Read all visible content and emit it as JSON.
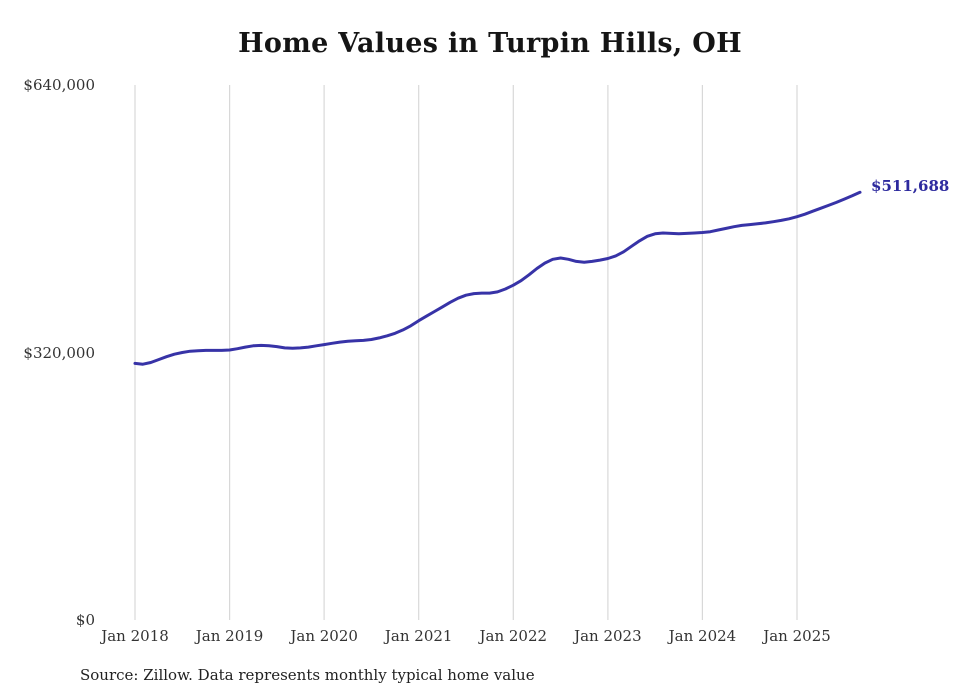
{
  "source_note": "Source: Zillow. Data represents monthly typical home value",
  "chart_data": {
    "type": "line",
    "title": "Home Values in Turpin Hills, OH",
    "xlabel": "",
    "ylabel": "",
    "ylim": [
      0,
      640000
    ],
    "grid": "vertical-only",
    "legend": "none",
    "line_color": "#3733a7",
    "end_label_color": "#2d2a9e",
    "grid_color": "#d8d8d8",
    "end_value_label": "$511,688",
    "y_ticks": [
      {
        "value": 0,
        "label": "$0"
      },
      {
        "value": 320000,
        "label": "$320,000"
      },
      {
        "value": 640000,
        "label": "$640,000"
      }
    ],
    "x_tick_labels": [
      "Jan 2018",
      "Jan 2019",
      "Jan 2020",
      "Jan 2021",
      "Jan 2022",
      "Jan 2023",
      "Jan 2024",
      "Jan 2025"
    ],
    "series": [
      {
        "name": "Typical home value",
        "months": [
          "2018-01",
          "2018-02",
          "2018-03",
          "2018-04",
          "2018-05",
          "2018-06",
          "2018-07",
          "2018-08",
          "2018-09",
          "2018-10",
          "2018-11",
          "2018-12",
          "2019-01",
          "2019-02",
          "2019-03",
          "2019-04",
          "2019-05",
          "2019-06",
          "2019-07",
          "2019-08",
          "2019-09",
          "2019-10",
          "2019-11",
          "2019-12",
          "2020-01",
          "2020-02",
          "2020-03",
          "2020-04",
          "2020-05",
          "2020-06",
          "2020-07",
          "2020-08",
          "2020-09",
          "2020-10",
          "2020-11",
          "2020-12",
          "2021-01",
          "2021-02",
          "2021-03",
          "2021-04",
          "2021-05",
          "2021-06",
          "2021-07",
          "2021-08",
          "2021-09",
          "2021-10",
          "2021-11",
          "2021-12",
          "2022-01",
          "2022-02",
          "2022-03",
          "2022-04",
          "2022-05",
          "2022-06",
          "2022-07",
          "2022-08",
          "2022-09",
          "2022-10",
          "2022-11",
          "2022-12",
          "2023-01",
          "2023-02",
          "2023-03",
          "2023-04",
          "2023-05",
          "2023-06",
          "2023-07",
          "2023-08",
          "2023-09",
          "2023-10",
          "2023-11",
          "2023-12",
          "2024-01",
          "2024-02",
          "2024-03",
          "2024-04",
          "2024-05",
          "2024-06",
          "2024-07",
          "2024-08",
          "2024-09",
          "2024-10",
          "2024-11",
          "2024-12",
          "2025-01",
          "2025-02",
          "2025-03",
          "2025-04",
          "2025-05",
          "2025-06",
          "2025-07",
          "2025-08",
          "2025-09"
        ],
        "values": [
          307000,
          306000,
          308000,
          311500,
          315000,
          318000,
          320000,
          321500,
          322000,
          322500,
          322500,
          322500,
          323000,
          324500,
          326500,
          328000,
          328500,
          328000,
          327000,
          325500,
          325000,
          325500,
          326500,
          328000,
          329500,
          331000,
          332500,
          333500,
          334000,
          334500,
          335500,
          337500,
          340000,
          343000,
          347000,
          352000,
          358000,
          363500,
          369000,
          374500,
          380000,
          385000,
          388500,
          390500,
          391000,
          391000,
          392500,
          396000,
          400500,
          406000,
          413000,
          420500,
          427000,
          431500,
          433000,
          431500,
          429000,
          428000,
          429000,
          430500,
          432500,
          435500,
          440500,
          447000,
          453500,
          459000,
          462000,
          463000,
          462500,
          462000,
          462500,
          463000,
          463500,
          464500,
          466500,
          468500,
          470500,
          472000,
          473000,
          474000,
          475000,
          476500,
          478000,
          480000,
          482500,
          485500,
          489000,
          492500,
          496000,
          499500,
          503500,
          507500,
          511688
        ]
      }
    ]
  }
}
